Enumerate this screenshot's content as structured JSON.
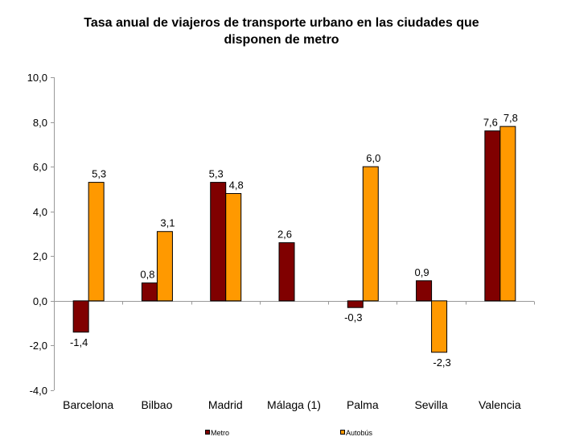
{
  "chart_data": {
    "type": "bar",
    "title_line1": "Tasa anual de viajeros de transporte urbano en las ciudades que",
    "title_line2": "disponen de metro",
    "xlabel": "",
    "ylabel": "",
    "ylim": [
      -4.0,
      10.0
    ],
    "yticks": [
      10.0,
      8.0,
      6.0,
      4.0,
      2.0,
      0.0,
      -2.0,
      -4.0
    ],
    "ytick_labels": [
      "10,0",
      "8,0",
      "6,0",
      "4,0",
      "2,0",
      "0,0",
      "-2,0",
      "-4,0"
    ],
    "grid": false,
    "legend_position": "bottom",
    "categories": [
      "Barcelona",
      "Bilbao",
      "Madrid",
      "Málaga (1)",
      "Palma",
      "Sevilla",
      "Valencia"
    ],
    "series": [
      {
        "name": "Metro",
        "color": "#800000",
        "values": [
          -1.4,
          0.8,
          5.3,
          2.6,
          -0.3,
          0.9,
          7.6
        ],
        "labels": [
          "-1,4",
          "0,8",
          "5,3",
          "2,6",
          "-0,3",
          "0,9",
          "7,6"
        ]
      },
      {
        "name": "Autobús",
        "color": "#FF9900",
        "values": [
          5.3,
          3.1,
          4.8,
          null,
          6.0,
          -2.3,
          7.8
        ],
        "labels": [
          "5,3",
          "3,1",
          "4,8",
          null,
          "6,0",
          "-2,3",
          "7,8"
        ]
      }
    ]
  }
}
